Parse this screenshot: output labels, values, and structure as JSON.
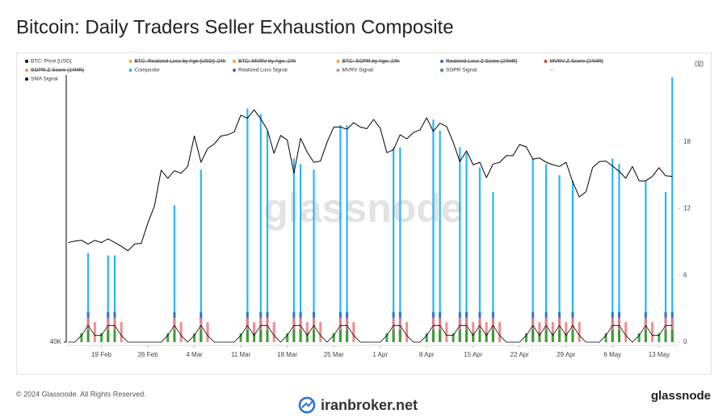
{
  "title": "Bitcoin: Daily Traders Seller Exhaustion Composite",
  "footer": "© 2024 Glassnode. All Rights Reserved.",
  "brand": "glassnode",
  "watermark": "iranbroker.net",
  "chart_data": {
    "type": "line",
    "watermark": "glassnode",
    "x": [
      "14 Feb",
      "15 Feb",
      "16 Feb",
      "17 Feb",
      "18 Feb",
      "19 Feb",
      "20 Feb",
      "21 Feb",
      "22 Feb",
      "23 Feb",
      "24 Feb",
      "25 Feb",
      "26 Feb",
      "27 Feb",
      "28 Feb",
      "29 Feb",
      "1 Mar",
      "2 Mar",
      "3 Mar",
      "4 Mar",
      "5 Mar",
      "6 Mar",
      "7 Mar",
      "8 Mar",
      "9 Mar",
      "10 Mar",
      "11 Mar",
      "12 Mar",
      "13 Mar",
      "14 Mar",
      "15 Mar",
      "16 Mar",
      "17 Mar",
      "18 Mar",
      "19 Mar",
      "20 Mar",
      "21 Mar",
      "22 Mar",
      "23 Mar",
      "24 Mar",
      "25 Mar",
      "26 Mar",
      "27 Mar",
      "28 Mar",
      "29 Mar",
      "30 Mar",
      "31 Mar",
      "1 Apr",
      "2 Apr",
      "3 Apr",
      "4 Apr",
      "5 Apr",
      "6 Apr",
      "7 Apr",
      "8 Apr",
      "9 Apr",
      "10 Apr",
      "11 Apr",
      "12 Apr",
      "13 Apr",
      "14 Apr",
      "15 Apr",
      "16 Apr",
      "17 Apr",
      "18 Apr",
      "19 Apr",
      "20 Apr",
      "21 Apr",
      "22 Apr",
      "23 Apr",
      "24 Apr",
      "25 Apr",
      "26 Apr",
      "27 Apr",
      "28 Apr",
      "29 Apr",
      "30 Apr",
      "1 May",
      "2 May",
      "3 May",
      "4 May",
      "5 May",
      "6 May",
      "7 May",
      "8 May",
      "9 May",
      "10 May",
      "11 May",
      "12 May",
      "13 May",
      "14 May",
      "15 May"
    ],
    "xticks": [
      "19 Feb",
      "26 Feb",
      "4 Mar",
      "11 Mar",
      "18 Mar",
      "25 Mar",
      "1 Apr",
      "8 Apr",
      "15 Apr",
      "22 Apr",
      "29 Apr",
      "6 May",
      "13 May"
    ],
    "ylim": [
      40000,
      80000
    ],
    "log": true,
    "yticks": [
      {
        "value": 40000,
        "label": "40K"
      }
    ],
    "y2lim": [
      0,
      24
    ],
    "y2ticks": [
      0,
      6,
      12,
      18
    ],
    "series": [
      {
        "name": "BTC: Price [USD]",
        "color": "#000000",
        "type": "line",
        "values": [
          51800,
          52000,
          52100,
          51600,
          52100,
          51800,
          52300,
          51800,
          51300,
          50700,
          51600,
          51700,
          54500,
          57000,
          62500,
          61200,
          62400,
          62000,
          63100,
          68300,
          63800,
          66100,
          66900,
          68300,
          68500,
          69000,
          72100,
          71500,
          73100,
          71400,
          69400,
          65300,
          68400,
          67600,
          62000,
          67900,
          65500,
          63800,
          64000,
          67200,
          69900,
          69900,
          69500,
          70700,
          69900,
          69600,
          71300,
          69700,
          65400,
          65900,
          68500,
          67800,
          68900,
          69400,
          71600,
          69100,
          70600,
          70000,
          67200,
          63900,
          65700,
          63400,
          63800,
          61300,
          63500,
          63800,
          64900,
          64900,
          66800,
          66400,
          64300,
          64500,
          63800,
          63400,
          63100,
          63800,
          60600,
          58300,
          59100,
          62900,
          63900,
          64000,
          63200,
          62300,
          61200,
          63100,
          60800,
          60800,
          61500,
          62900,
          61600,
          61500
        ]
      },
      {
        "name": "BTC: Realized Loss by Age [USD]: 24h",
        "color": "#f0a050",
        "hidden": true
      },
      {
        "name": "BTC: MVRV by Age: 24h",
        "color": "#f0a050",
        "hidden": true
      },
      {
        "name": "BTC: SOPR by Age: 24h",
        "color": "#f0a050",
        "hidden": true
      },
      {
        "name": "Realized Loss Z-Score (24HR)",
        "color": "#4a5fb0",
        "hidden": true
      },
      {
        "name": "MVRV Z-Score (24HR)",
        "color": "#d04040",
        "hidden": true
      },
      {
        "name": "SOPR Z-Score (24HR)",
        "color": "#e0a020",
        "hidden": true
      },
      {
        "name": "Composite",
        "color": "#29b6f6",
        "type": "bar",
        "axis": "y2",
        "values": [
          0,
          0,
          0,
          8,
          0,
          0,
          7.8,
          7.8,
          0,
          0,
          0,
          0,
          0,
          0,
          0,
          0,
          12.3,
          0,
          0,
          0,
          15.5,
          0,
          0,
          0,
          0,
          0,
          0,
          21,
          0,
          20.5,
          19,
          0,
          0,
          0,
          16.5,
          16,
          0,
          15.5,
          0,
          0,
          0,
          19.5,
          19.5,
          0,
          0,
          0,
          0,
          0,
          0,
          17.5,
          17.5,
          0,
          0,
          0,
          0,
          20,
          19,
          0,
          0,
          17.5,
          17,
          0,
          15.7,
          0,
          13.5,
          0,
          0,
          0,
          0,
          0,
          16.5,
          0,
          16,
          0,
          15,
          0,
          14.5,
          0,
          0,
          0,
          0,
          0,
          16.5,
          16,
          0,
          0,
          0,
          14.5,
          0,
          0,
          13.5,
          23.8
        ]
      },
      {
        "name": "Realized Loss Signal",
        "color": "#1f6fd6",
        "type": "bar",
        "axis": "y2",
        "values": [
          0,
          0,
          0,
          2.7,
          0,
          0,
          2.7,
          2.7,
          0,
          0,
          0,
          0,
          0,
          0,
          0,
          0,
          2.7,
          0,
          0,
          0,
          2.7,
          0,
          0,
          0,
          0,
          0,
          0,
          2.7,
          0,
          2.7,
          2.7,
          0,
          0,
          0,
          2.7,
          2.7,
          0,
          2.7,
          0,
          0,
          0,
          2.7,
          2.7,
          0,
          0,
          0,
          0,
          0,
          0,
          2.7,
          2.7,
          0,
          0,
          0,
          0,
          2.7,
          2.7,
          0,
          0,
          2.7,
          2.7,
          0,
          2.7,
          0,
          2.7,
          0,
          0,
          0,
          0,
          0,
          2.7,
          0,
          2.7,
          0,
          2.7,
          0,
          2.7,
          0,
          0,
          0,
          0,
          0,
          2.7,
          2.7,
          0,
          0,
          0,
          2.7,
          0,
          0,
          2.7,
          2.7
        ]
      },
      {
        "name": "MVRV Signal",
        "color": "#f08080",
        "type": "bar",
        "axis": "y2",
        "values": [
          0,
          0,
          0,
          2.2,
          1.8,
          0,
          2.2,
          2.2,
          1.8,
          0,
          0,
          0,
          0,
          0,
          0,
          0,
          2.2,
          1.8,
          0,
          0,
          2.2,
          1.8,
          0,
          0,
          0,
          0,
          0,
          2.2,
          1.8,
          2.2,
          2.2,
          1.8,
          0,
          0,
          2.2,
          2.2,
          1.8,
          2.2,
          1.8,
          0,
          0,
          2.2,
          2.2,
          1.8,
          0,
          0,
          0,
          0,
          0,
          2.2,
          2.2,
          1.8,
          0,
          0,
          0,
          2.2,
          2.2,
          1.8,
          0,
          2.2,
          2.2,
          1.8,
          2.2,
          1.8,
          2.2,
          1.8,
          0,
          0,
          0,
          0,
          2.2,
          1.8,
          2.2,
          1.8,
          2.2,
          1.8,
          2.2,
          1.8,
          0,
          0,
          0,
          0,
          2.2,
          2.2,
          1.8,
          0,
          0,
          2.2,
          1.8,
          0,
          2.2,
          2.2
        ]
      },
      {
        "name": "SOPR Signal",
        "color": "#2ca02c",
        "type": "bar",
        "axis": "y2",
        "values": [
          0,
          0,
          0.8,
          1.1,
          0,
          0.8,
          1.1,
          1.1,
          0,
          0,
          0,
          0,
          0,
          0,
          0,
          0.8,
          1.1,
          0,
          0,
          0.8,
          1.1,
          0,
          0,
          0,
          0,
          0,
          0.8,
          1.1,
          0.8,
          1.1,
          1.1,
          0,
          0,
          0.8,
          1.1,
          1.1,
          0.8,
          1.1,
          0,
          0,
          0.8,
          1.1,
          1.1,
          0,
          0,
          0,
          0,
          0,
          0.8,
          1.1,
          1.1,
          0,
          0,
          0,
          0.8,
          1.1,
          1.1,
          0,
          0.8,
          1.1,
          1.1,
          0.8,
          1.1,
          0.8,
          1.1,
          0,
          0,
          0,
          0,
          0.8,
          1.1,
          0.8,
          1.1,
          0.8,
          1.1,
          0.8,
          1.1,
          0,
          0,
          0,
          0,
          0.8,
          1.1,
          1.1,
          0,
          0,
          0.8,
          1.1,
          0,
          0.8,
          1.1,
          1.1
        ]
      },
      {
        "name": "--"
      },
      {
        "name": "SMA Signal",
        "color": "#000000",
        "type": "line",
        "axis": "y2",
        "values": [
          0,
          0,
          0.6,
          1.5,
          0.6,
          0.6,
          1.5,
          1.5,
          0.6,
          0,
          0,
          0,
          0,
          0,
          0,
          0.6,
          1.5,
          0.6,
          0,
          0.6,
          1.5,
          0.6,
          0,
          0,
          0,
          0,
          0.6,
          1.5,
          0.6,
          1.5,
          1.5,
          0.6,
          0,
          0.6,
          1.5,
          1.5,
          0.6,
          1.5,
          0.6,
          0,
          0.6,
          1.5,
          1.5,
          0.6,
          0,
          0,
          0,
          0,
          0.6,
          1.5,
          1.5,
          0.6,
          0,
          0,
          0.6,
          1.5,
          1.5,
          0.6,
          0.6,
          1.5,
          1.5,
          0.6,
          1.5,
          0.6,
          1.5,
          0.6,
          0,
          0,
          0,
          0.6,
          1.5,
          0.6,
          1.5,
          0.6,
          1.5,
          0.6,
          1.5,
          0.6,
          0,
          0,
          0,
          0.6,
          1.5,
          1.5,
          0.6,
          0,
          0.6,
          1.5,
          0.6,
          0.6,
          1.5,
          1.5
        ]
      }
    ]
  }
}
